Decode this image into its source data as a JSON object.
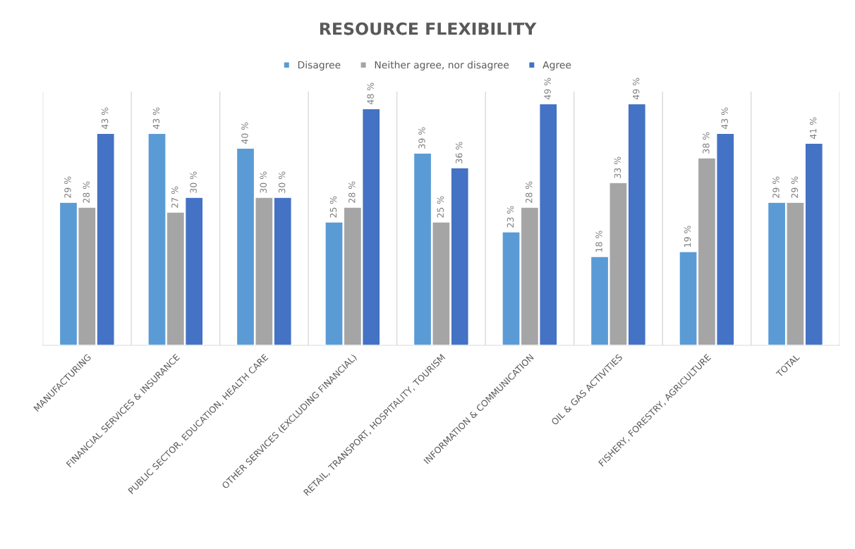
{
  "chart_data": {
    "type": "bar",
    "title": "RESOURCE FLEXIBILITY",
    "categories": [
      "MANUFACTURING",
      "FINANCIAL SERVICES & INSURANCE",
      "PUBLIC SECTOR, EDUCATION, HEALTH CARE",
      "OTHER SERVICES (EXCLUDING FINANCIAL)",
      "RETAIL, TRANSPORT, HOSPITALITY, TOURISM",
      "INFORMATION & COMMUNICATION",
      "OIL & GAS ACTIVITIES",
      "FISHERY, FORESTRY, AGRICULTURE",
      "TOTAL"
    ],
    "series": [
      {
        "name": "Disagree",
        "color": "#5b9bd5",
        "values": [
          29,
          43,
          40,
          25,
          39,
          23,
          18,
          19,
          29
        ],
        "value_labels": [
          "29 %",
          "43 %",
          "40 %",
          "25 %",
          "39 %",
          "23 %",
          "18 %",
          "19 %",
          "29 %"
        ]
      },
      {
        "name": "Neither agree, nor disagree",
        "color": "#a5a5a5",
        "values": [
          28,
          27,
          30,
          28,
          25,
          28,
          33,
          38,
          29
        ],
        "value_labels": [
          "28 %",
          "27 %",
          "30 %",
          "28 %",
          "25 %",
          "28 %",
          "33 %",
          "38 %",
          "29 %"
        ]
      },
      {
        "name": "Agree",
        "color": "#4472c4",
        "values": [
          43,
          30,
          30,
          48,
          36,
          49,
          49,
          43,
          41
        ],
        "value_labels": [
          "43 %",
          "30 %",
          "30 %",
          "48 %",
          "36 %",
          "49 %",
          "49 %",
          "43 %",
          "41 %"
        ]
      }
    ],
    "grid": "x",
    "legend": "top"
  }
}
